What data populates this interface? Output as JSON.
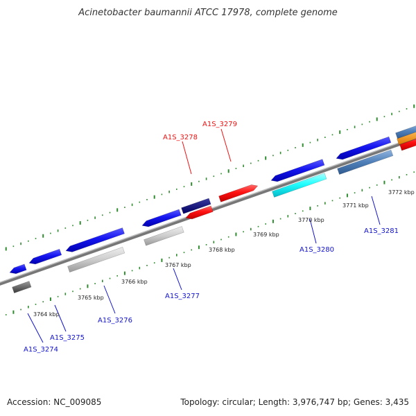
{
  "title": "Acinetobacter baumannii ATCC 17978, complete genome",
  "footer": {
    "accession": "Accession: NC_009085",
    "topology": "Topology: circular; Length: 3,976,747 bp; Genes: 3,435"
  },
  "colors": {
    "backbone": "#888888",
    "tick": "#2e8b2e",
    "label_red": "#ee1111",
    "label_blue": "#1111cc"
  },
  "kbp_labels": [
    "3764 kbp",
    "3765 kbp",
    "3766 kbp",
    "3767 kbp",
    "3768 kbp",
    "3769 kbp",
    "3770 kbp",
    "3771 kbp",
    "3772 kbp"
  ],
  "gene_labels": [
    "A1S_3274",
    "A1S_3275",
    "A1S_3276",
    "A1S_3277",
    "A1S_3278",
    "A1S_3279",
    "A1S_3280",
    "A1S_3281"
  ],
  "gene_colors": {
    "A1S_3274": "blue",
    "A1S_3275": "blue",
    "A1S_3276": "blue",
    "A1S_3277": "blue",
    "A1S_3278": "red",
    "A1S_3279": "red",
    "A1S_3280": "blue",
    "A1S_3281": "blue"
  }
}
